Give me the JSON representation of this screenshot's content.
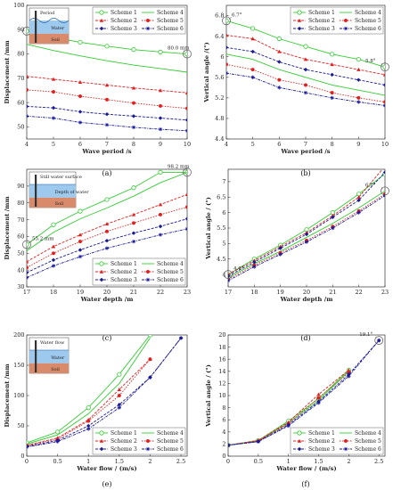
{
  "figure": {
    "panels": [
      "(a)",
      "(b)",
      "(c)",
      "(d)",
      "(e)",
      "(f)"
    ]
  },
  "legend_entries": [
    "Scheme 1",
    "Scheme 2",
    "Scheme 3",
    "Scheme 4",
    "Scheme 5",
    "Scheme 6"
  ],
  "colors": {
    "green": "#33cc33",
    "red": "#e02020",
    "blue": "#1a1a99"
  },
  "insets": {
    "a": {
      "labels": [
        "Period",
        "Water",
        "Soil"
      ]
    },
    "c": {
      "labels": [
        "Still water surface",
        "Depth of water",
        "Soil"
      ]
    },
    "e": {
      "labels": [
        "Water flow",
        "Water",
        "Soil"
      ]
    }
  },
  "chart_data": [
    {
      "id": "a",
      "type": "line",
      "xlabel": "Wave period /s",
      "ylabel": "Displacement /mm",
      "xlim": [
        4,
        10
      ],
      "ylim": [
        45,
        100
      ],
      "xticks": [
        4,
        5,
        6,
        7,
        8,
        9,
        10
      ],
      "yticks": [
        50,
        60,
        70,
        80,
        90,
        100
      ],
      "x": [
        4,
        5,
        6,
        7,
        8,
        9,
        10
      ],
      "series": [
        {
          "name": "Scheme 1",
          "values": [
            89.4,
            86.8,
            84.8,
            83.2,
            81.8,
            80.8,
            80.0
          ]
        },
        {
          "name": "Scheme 4",
          "values": [
            84.0,
            81.4,
            79.2,
            77.2,
            75.4,
            74.0,
            72.5
          ]
        },
        {
          "name": "Scheme 2",
          "values": [
            70.8,
            69.6,
            68.4,
            67.2,
            66.0,
            65.0,
            64.0
          ]
        },
        {
          "name": "Scheme 5",
          "values": [
            65.2,
            64.4,
            62.6,
            61.2,
            59.8,
            58.6,
            57.6
          ]
        },
        {
          "name": "Scheme 3",
          "values": [
            58.4,
            57.8,
            56.2,
            55.2,
            54.4,
            53.6,
            52.8
          ]
        },
        {
          "name": "Scheme 6",
          "values": [
            54.4,
            53.6,
            51.8,
            50.8,
            49.8,
            49.0,
            48.4
          ]
        }
      ],
      "annotations": [
        {
          "text": "89.4 mm",
          "x": 4,
          "y": 89.4
        },
        {
          "text": "80.0 mm",
          "x": 10,
          "y": 80.0
        }
      ]
    },
    {
      "id": "b",
      "type": "line",
      "xlabel": "Wave period /s",
      "ylabel": "Vertical angle /(°)",
      "xlim": [
        4,
        10
      ],
      "ylim": [
        4.4,
        7.0
      ],
      "xticks": [
        4,
        5,
        6,
        7,
        8,
        9,
        10
      ],
      "yticks": [
        4.4,
        4.8,
        5.2,
        5.6,
        6.0,
        6.4,
        6.8
      ],
      "x": [
        4,
        5,
        6,
        7,
        8,
        9,
        10
      ],
      "series": [
        {
          "name": "Scheme 1",
          "values": [
            6.7,
            6.55,
            6.35,
            6.2,
            6.05,
            5.95,
            5.8
          ]
        },
        {
          "name": "Scheme 4",
          "values": [
            6.05,
            5.95,
            5.75,
            5.6,
            5.45,
            5.35,
            5.25
          ]
        },
        {
          "name": "Scheme 2",
          "values": [
            6.42,
            6.35,
            6.1,
            5.95,
            5.85,
            5.75,
            5.65
          ]
        },
        {
          "name": "Scheme 5",
          "values": [
            5.85,
            5.75,
            5.55,
            5.45,
            5.3,
            5.2,
            5.12
          ]
        },
        {
          "name": "Scheme 3",
          "values": [
            6.18,
            6.1,
            5.9,
            5.75,
            5.65,
            5.55,
            5.45
          ]
        },
        {
          "name": "Scheme 6",
          "values": [
            5.68,
            5.6,
            5.4,
            5.3,
            5.2,
            5.12,
            5.05
          ]
        }
      ],
      "annotations": [
        {
          "text": "6.7°",
          "x": 4,
          "y": 6.7
        },
        {
          "text": "5.8°",
          "x": 10,
          "y": 5.8
        }
      ]
    },
    {
      "id": "c",
      "type": "line",
      "xlabel": "Water depth /m",
      "ylabel": "Displacement /mm",
      "xlim": [
        17,
        23
      ],
      "ylim": [
        30,
        100
      ],
      "xticks": [
        17,
        18,
        19,
        20,
        21,
        22,
        23
      ],
      "yticks": [
        30,
        40,
        50,
        60,
        70,
        80,
        90
      ],
      "x": [
        17,
        18,
        19,
        20,
        21,
        22,
        23
      ],
      "series": [
        {
          "name": "Scheme 1",
          "values": [
            55.2,
            67.0,
            75.0,
            82.0,
            89.0,
            98.2,
            98.2
          ]
        },
        {
          "name": "Scheme 4",
          "values": [
            51.5,
            62.5,
            70.5,
            77.0,
            84.0,
            92.0,
            98.2
          ]
        },
        {
          "name": "Scheme 2",
          "values": [
            45.0,
            54.0,
            61.0,
            67.5,
            73.0,
            79.0,
            85.0
          ]
        },
        {
          "name": "Scheme 5",
          "values": [
            41.5,
            50.0,
            57.0,
            63.0,
            68.0,
            73.0,
            77.5
          ]
        },
        {
          "name": "Scheme 3",
          "values": [
            38.5,
            46.0,
            52.0,
            57.5,
            62.0,
            66.0,
            70.5
          ]
        },
        {
          "name": "Scheme 6",
          "values": [
            35.5,
            42.5,
            48.0,
            53.0,
            57.0,
            61.0,
            64.5
          ]
        }
      ],
      "annotations": [
        {
          "text": "55.2 mm",
          "x": 17,
          "y": 55.2
        },
        {
          "text": "98.2 mm",
          "x": 23,
          "y": 98.2
        }
      ]
    },
    {
      "id": "d",
      "type": "line",
      "xlabel": "Water depth /m",
      "ylabel": "Vertical angle / (°)",
      "xlim": [
        17,
        23
      ],
      "ylim": [
        3.6,
        7.4
      ],
      "xticks": [
        17,
        18,
        19,
        20,
        21,
        22,
        23
      ],
      "yticks": [
        4.0,
        4.5,
        5.0,
        5.5,
        6.0,
        6.5,
        7.0
      ],
      "x": [
        17,
        18,
        19,
        20,
        21,
        22,
        23
      ],
      "series": [
        {
          "name": "Scheme 1",
          "values": [
            4.0,
            4.5,
            4.95,
            5.45,
            6.0,
            6.6,
            7.25
          ]
        },
        {
          "name": "Scheme 4",
          "values": [
            3.9,
            4.35,
            4.75,
            5.2,
            5.65,
            6.15,
            6.7
          ]
        },
        {
          "name": "Scheme 2",
          "values": [
            4.0,
            4.45,
            4.9,
            5.35,
            5.9,
            6.5,
            7.5
          ]
        },
        {
          "name": "Scheme 5",
          "values": [
            3.85,
            4.3,
            4.7,
            5.1,
            5.55,
            6.05,
            6.6
          ]
        },
        {
          "name": "Scheme 3",
          "values": [
            3.95,
            4.4,
            4.85,
            5.3,
            5.85,
            6.4,
            7.3
          ]
        },
        {
          "name": "Scheme 6",
          "values": [
            3.8,
            4.25,
            4.65,
            5.05,
            5.5,
            6.0,
            6.55
          ]
        }
      ],
      "annotations": [
        {
          "text": "4.0°",
          "x": 17,
          "y": 4.0
        },
        {
          "text": "6.7°",
          "x": 23,
          "y": 6.7
        }
      ]
    },
    {
      "id": "e",
      "type": "line",
      "xlabel": "Water flow / (m/s)",
      "ylabel": "Displacement /mm",
      "xlim": [
        0,
        2.6
      ],
      "ylim": [
        0,
        200
      ],
      "xticks": [
        0.0,
        0.5,
        1.0,
        1.5,
        2.0,
        2.5
      ],
      "yticks": [
        0,
        50,
        100,
        150,
        200
      ],
      "x": [
        0,
        0.5,
        1.0,
        1.5,
        2.0,
        2.5
      ],
      "series": [
        {
          "name": "Scheme 1",
          "x": [
            0,
            0.5,
            1.0,
            1.5,
            2.0
          ],
          "values": [
            22,
            40,
            80,
            135,
            200
          ]
        },
        {
          "name": "Scheme 4",
          "x": [
            0,
            0.5,
            1.0,
            1.5,
            2.0
          ],
          "values": [
            20,
            35,
            70,
            120,
            195
          ]
        },
        {
          "name": "Scheme 2",
          "x": [
            0,
            0.5,
            1.0,
            1.5,
            2.0
          ],
          "values": [
            18,
            30,
            60,
            110,
            160
          ]
        },
        {
          "name": "Scheme 5",
          "x": [
            0,
            0.5,
            1.0,
            1.5,
            2.0
          ],
          "values": [
            17,
            28,
            58,
            100,
            160
          ]
        },
        {
          "name": "Scheme 3",
          "x": [
            0,
            0.5,
            1.0,
            1.5,
            2.0,
            2.5
          ],
          "values": [
            16,
            26,
            50,
            85,
            130,
            195
          ]
        },
        {
          "name": "Scheme 6",
          "x": [
            0,
            0.5,
            1.0,
            1.5,
            2.0,
            2.5
          ],
          "values": [
            15,
            24,
            45,
            80,
            130,
            195
          ]
        }
      ]
    },
    {
      "id": "f",
      "type": "line",
      "xlabel": "Water flow / (m/s)",
      "ylabel": "Vertical angle / (°)",
      "xlim": [
        0,
        2.6
      ],
      "ylim": [
        0,
        20
      ],
      "xticks": [
        0.0,
        0.5,
        1.0,
        1.5,
        2.0,
        2.5
      ],
      "yticks": [
        0.0,
        2.0,
        4.0,
        6.0,
        8.0,
        10.0,
        12.0,
        14.0,
        16.0,
        18.0,
        20.0
      ],
      "x": [
        0,
        0.5,
        1.0,
        1.5,
        2.0,
        2.5
      ],
      "series": [
        {
          "name": "Scheme 1",
          "x": [
            0,
            0.5,
            1.0,
            1.5,
            2.0
          ],
          "values": [
            1.8,
            2.6,
            5.8,
            9.5,
            14.2
          ]
        },
        {
          "name": "Scheme 4",
          "x": [
            0,
            0.5,
            1.0,
            1.5,
            2.0
          ],
          "values": [
            1.8,
            2.5,
            5.5,
            9.2,
            14.0
          ]
        },
        {
          "name": "Scheme 2",
          "x": [
            0,
            0.5,
            1.0,
            1.5,
            2.0
          ],
          "values": [
            1.8,
            2.6,
            5.6,
            10.2,
            14.2
          ]
        },
        {
          "name": "Scheme 5",
          "x": [
            0,
            0.5,
            1.0,
            1.5,
            2.0
          ],
          "values": [
            1.8,
            2.5,
            5.4,
            9.6,
            13.8
          ]
        },
        {
          "name": "Scheme 3",
          "x": [
            0,
            0.5,
            1.0,
            1.5,
            2.0,
            2.5
          ],
          "values": [
            1.8,
            2.4,
            5.2,
            9.0,
            13.5,
            19.1
          ]
        },
        {
          "name": "Scheme 6",
          "x": [
            0,
            0.5,
            1.0,
            1.5,
            2.0,
            2.5
          ],
          "values": [
            1.8,
            2.4,
            5.0,
            8.8,
            13.2,
            19.1
          ]
        }
      ],
      "annotations": [
        {
          "text": "19.1°",
          "x": 2.5,
          "y": 19.1
        }
      ]
    }
  ]
}
